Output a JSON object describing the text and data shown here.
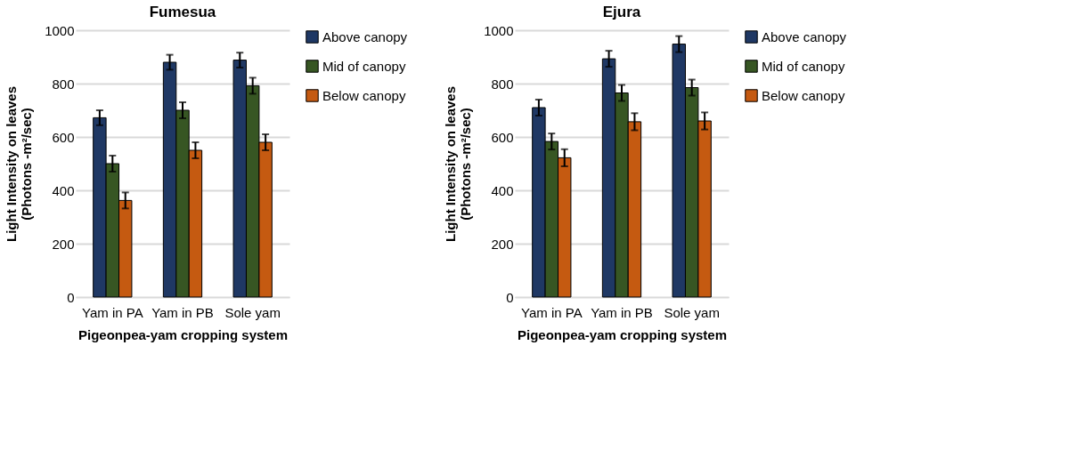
{
  "chart_data": [
    {
      "type": "bar",
      "title": "Fumesua",
      "xlabel": "Pigeonpea-yam cropping system",
      "ylabel": "Light Intensity on leaves\n(Photons -m²/sec)",
      "categories": [
        "Yam in PA",
        "Yam in PB",
        "Sole yam"
      ],
      "ylim": [
        0,
        1000
      ],
      "yticks": [
        0,
        200,
        400,
        600,
        800,
        1000
      ],
      "grid": "y",
      "legend": "right",
      "series": [
        {
          "name": "Above canopy",
          "color": "#1f3864",
          "values": [
            672,
            880,
            888
          ],
          "errors": [
            28,
            28,
            28
          ]
        },
        {
          "name": "Mid of canopy",
          "color": "#375623",
          "values": [
            500,
            700,
            792
          ],
          "errors": [
            30,
            30,
            30
          ]
        },
        {
          "name": "Below canopy",
          "color": "#c55a11",
          "values": [
            362,
            550,
            580
          ],
          "errors": [
            30,
            30,
            30
          ]
        }
      ]
    },
    {
      "type": "bar",
      "title": "Ejura",
      "xlabel": "Pigeonpea-yam cropping system",
      "ylabel": "Light Intensity on leaves\n(Photons -m²/sec)",
      "categories": [
        "Yam in PA",
        "Yam in PB",
        "Sole yam"
      ],
      "ylim": [
        0,
        1000
      ],
      "yticks": [
        0,
        200,
        400,
        600,
        800,
        1000
      ],
      "grid": "y",
      "legend": "right",
      "series": [
        {
          "name": "Above canopy",
          "color": "#1f3864",
          "values": [
            710,
            893,
            948
          ],
          "errors": [
            30,
            30,
            30
          ]
        },
        {
          "name": "Mid of canopy",
          "color": "#375623",
          "values": [
            583,
            765,
            785
          ],
          "errors": [
            30,
            30,
            30
          ]
        },
        {
          "name": "Below canopy",
          "color": "#c55a11",
          "values": [
            522,
            657,
            660
          ],
          "errors": [
            32,
            32,
            32
          ]
        }
      ]
    }
  ]
}
